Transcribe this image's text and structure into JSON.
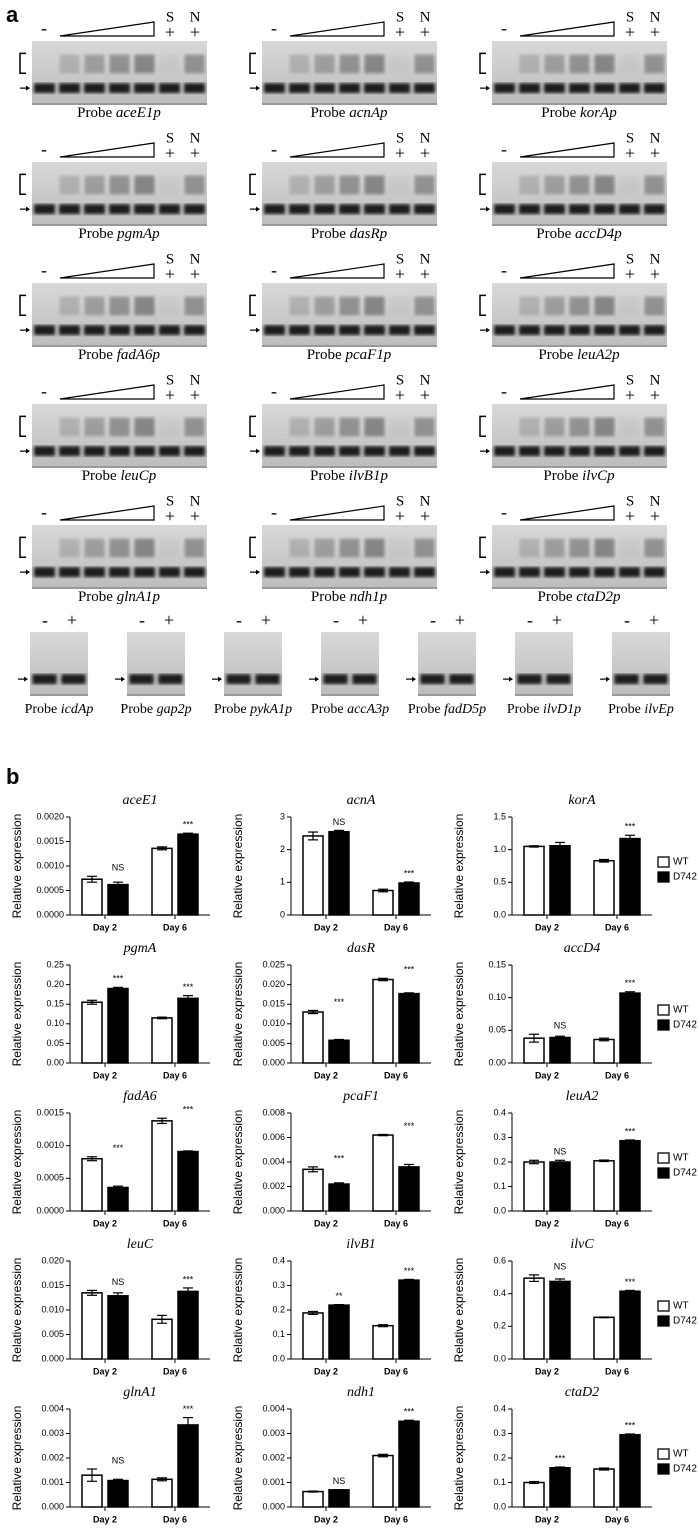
{
  "panel_a": {
    "label": "a",
    "minus": "-",
    "plus": "+",
    "specific": "S",
    "nonspecific": "N",
    "probe_word": "Probe",
    "titration_gels": [
      "aceE1p",
      "acnAp",
      "korAp",
      "pgmAp",
      "dasRp",
      "accD4p",
      "fadA6p",
      "pcaF1p",
      "leuA2p",
      "leuCp",
      "ilvB1p",
      "ilvCp",
      "glnA1p",
      "ndh1p",
      "ctaD2p"
    ],
    "control_gels": [
      "icdAp",
      "gap2p",
      "pykA1p",
      "accA3p",
      "fadD5p",
      "ilvD1p",
      "ilvEp"
    ]
  },
  "panel_b": {
    "label": "b"
  },
  "chart_data": [
    {
      "type": "bar",
      "title": "aceE1",
      "ylabel": "Relative expression",
      "categories": [
        "Day 2",
        "Day 6"
      ],
      "series": [
        {
          "name": "WT",
          "color": "#ffffff",
          "values": [
            0.00073,
            0.00136
          ],
          "errors": [
            6e-05,
            3e-05
          ]
        },
        {
          "name": "D742",
          "color": "#000000",
          "values": [
            0.00062,
            0.00165
          ],
          "errors": [
            5e-05,
            2e-05
          ]
        }
      ],
      "annotations": [
        "NS",
        "***"
      ],
      "ylim": [
        0,
        0.002
      ],
      "yticks": [
        {
          "value": 0,
          "label": "0.0000"
        },
        {
          "value": 0.0005,
          "label": "0.0005"
        },
        {
          "value": 0.001,
          "label": "0.0010"
        },
        {
          "value": 0.0015,
          "label": "0.0015"
        },
        {
          "value": 0.002,
          "label": "0.0020"
        }
      ],
      "legend": false
    },
    {
      "type": "bar",
      "title": "acnA",
      "ylabel": "Relative expression",
      "categories": [
        "Day 2",
        "Day 6"
      ],
      "series": [
        {
          "name": "WT",
          "color": "#ffffff",
          "values": [
            2.42,
            0.75
          ],
          "errors": [
            0.12,
            0.04
          ]
        },
        {
          "name": "D742",
          "color": "#000000",
          "values": [
            2.55,
            0.98
          ],
          "errors": [
            0.04,
            0.03
          ]
        }
      ],
      "annotations": [
        "NS",
        "***"
      ],
      "ylim": [
        0,
        3
      ],
      "yticks": [
        0,
        1,
        2,
        3
      ],
      "legend": false
    },
    {
      "type": "bar",
      "title": "korA",
      "ylabel": "Relative expression",
      "categories": [
        "Day 2",
        "Day 6"
      ],
      "series": [
        {
          "name": "WT",
          "color": "#ffffff",
          "values": [
            1.05,
            0.83
          ],
          "errors": [
            0.01,
            0.02
          ]
        },
        {
          "name": "D742",
          "color": "#000000",
          "values": [
            1.06,
            1.17
          ],
          "errors": [
            0.05,
            0.05
          ]
        }
      ],
      "annotations": [
        null,
        "***"
      ],
      "ylim": [
        0,
        1.5
      ],
      "yticks": [
        {
          "value": 0,
          "label": "0.0"
        },
        {
          "value": 0.5,
          "label": "0.5"
        },
        {
          "value": 1,
          "label": "1.0"
        },
        {
          "value": 1.5,
          "label": "1.5"
        }
      ],
      "legend": true
    },
    {
      "type": "bar",
      "title": "pgmA",
      "ylabel": "Relative expression",
      "categories": [
        "Day 2",
        "Day 6"
      ],
      "series": [
        {
          "name": "WT",
          "color": "#ffffff",
          "values": [
            0.155,
            0.115
          ],
          "errors": [
            0.005,
            0.002
          ]
        },
        {
          "name": "D742",
          "color": "#000000",
          "values": [
            0.19,
            0.165
          ],
          "errors": [
            0.003,
            0.007
          ]
        }
      ],
      "annotations": [
        "***",
        "***"
      ],
      "ylim": [
        0,
        0.25
      ],
      "yticks": [
        {
          "value": 0,
          "label": "0.00"
        },
        {
          "value": 0.05,
          "label": "0.05"
        },
        {
          "value": 0.1,
          "label": "0.10"
        },
        {
          "value": 0.15,
          "label": "0.15"
        },
        {
          "value": 0.2,
          "label": "0.20"
        },
        {
          "value": 0.25,
          "label": "0.25"
        }
      ],
      "legend": false
    },
    {
      "type": "bar",
      "title": "dasR",
      "ylabel": "Relative expression",
      "categories": [
        "Day 2",
        "Day 6"
      ],
      "series": [
        {
          "name": "WT",
          "color": "#ffffff",
          "values": [
            0.013,
            0.0213
          ],
          "errors": [
            0.0004,
            0.0003
          ]
        },
        {
          "name": "D742",
          "color": "#000000",
          "values": [
            0.0058,
            0.0177
          ],
          "errors": [
            0.0002,
            0.0002
          ]
        }
      ],
      "annotations": [
        "***",
        "***"
      ],
      "ylim": [
        0,
        0.025
      ],
      "yticks": [
        {
          "value": 0,
          "label": "0.000"
        },
        {
          "value": 0.005,
          "label": "0.005"
        },
        {
          "value": 0.01,
          "label": "0.010"
        },
        {
          "value": 0.015,
          "label": "0.015"
        },
        {
          "value": 0.02,
          "label": "0.020"
        },
        {
          "value": 0.025,
          "label": "0.025"
        }
      ],
      "legend": false
    },
    {
      "type": "bar",
      "title": "accD4",
      "ylabel": "Relative expression",
      "categories": [
        "Day 2",
        "Day 6"
      ],
      "series": [
        {
          "name": "WT",
          "color": "#ffffff",
          "values": [
            0.038,
            0.036
          ],
          "errors": [
            0.006,
            0.002
          ]
        },
        {
          "name": "D742",
          "color": "#000000",
          "values": [
            0.039,
            0.107
          ],
          "errors": [
            0.002,
            0.002
          ]
        }
      ],
      "annotations": [
        "NS",
        "***"
      ],
      "ylim": [
        0,
        0.15
      ],
      "yticks": [
        {
          "value": 0,
          "label": "0.00"
        },
        {
          "value": 0.05,
          "label": "0.05"
        },
        {
          "value": 0.1,
          "label": "0.10"
        },
        {
          "value": 0.15,
          "label": "0.15"
        }
      ],
      "legend": true
    },
    {
      "type": "bar",
      "title": "fadA6",
      "ylabel": "Relative expression",
      "categories": [
        "Day 2",
        "Day 6"
      ],
      "series": [
        {
          "name": "WT",
          "color": "#ffffff",
          "values": [
            0.0008,
            0.00138
          ],
          "errors": [
            3e-05,
            4e-05
          ]
        },
        {
          "name": "D742",
          "color": "#000000",
          "values": [
            0.00036,
            0.00091
          ],
          "errors": [
            2e-05,
            1e-05
          ]
        }
      ],
      "annotations": [
        "***",
        "***"
      ],
      "ylim": [
        0,
        0.0015
      ],
      "yticks": [
        {
          "value": 0,
          "label": "0.0000"
        },
        {
          "value": 0.0005,
          "label": "0.0005"
        },
        {
          "value": 0.001,
          "label": "0.0010"
        },
        {
          "value": 0.0015,
          "label": "0.0015"
        }
      ],
      "legend": false
    },
    {
      "type": "bar",
      "title": "pcaF1",
      "ylabel": "Relative expression",
      "categories": [
        "Day 2",
        "Day 6"
      ],
      "series": [
        {
          "name": "WT",
          "color": "#ffffff",
          "values": [
            0.0034,
            0.0062
          ],
          "errors": [
            0.0002,
            5e-05
          ]
        },
        {
          "name": "D742",
          "color": "#000000",
          "values": [
            0.0022,
            0.0036
          ],
          "errors": [
            0.0001,
            0.0002
          ]
        }
      ],
      "annotations": [
        "***",
        "***"
      ],
      "ylim": [
        0,
        0.008
      ],
      "yticks": [
        {
          "value": 0,
          "label": "0.000"
        },
        {
          "value": 0.002,
          "label": "0.002"
        },
        {
          "value": 0.004,
          "label": "0.004"
        },
        {
          "value": 0.006,
          "label": "0.006"
        },
        {
          "value": 0.008,
          "label": "0.008"
        }
      ],
      "legend": false
    },
    {
      "type": "bar",
      "title": "leuA2",
      "ylabel": "Relative expression",
      "categories": [
        "Day 2",
        "Day 6"
      ],
      "series": [
        {
          "name": "WT",
          "color": "#ffffff",
          "values": [
            0.2,
            0.205
          ],
          "errors": [
            0.007,
            0.003
          ]
        },
        {
          "name": "D742",
          "color": "#000000",
          "values": [
            0.2,
            0.287
          ],
          "errors": [
            0.007,
            0.003
          ]
        }
      ],
      "annotations": [
        "NS",
        "***"
      ],
      "ylim": [
        0,
        0.4
      ],
      "yticks": [
        {
          "value": 0,
          "label": "0.0"
        },
        0.1,
        0.2,
        0.3,
        0.4
      ],
      "legend": true
    },
    {
      "type": "bar",
      "title": "leuC",
      "ylabel": "Relative expression",
      "categories": [
        "Day 2",
        "Day 6"
      ],
      "series": [
        {
          "name": "WT",
          "color": "#ffffff",
          "values": [
            0.0135,
            0.0081
          ],
          "errors": [
            0.0005,
            0.0008
          ]
        },
        {
          "name": "D742",
          "color": "#000000",
          "values": [
            0.0129,
            0.0138
          ],
          "errors": [
            0.0006,
            0.0007
          ]
        }
      ],
      "annotations": [
        "NS",
        "***"
      ],
      "ylim": [
        0,
        0.02
      ],
      "yticks": [
        {
          "value": 0,
          "label": "0.000"
        },
        0.005,
        {
          "value": 0.01,
          "label": "0.010"
        },
        0.015,
        {
          "value": 0.02,
          "label": "0.020"
        }
      ],
      "legend": false
    },
    {
      "type": "bar",
      "title": "ilvB1",
      "ylabel": "Relative expression",
      "categories": [
        "Day 2",
        "Day 6"
      ],
      "series": [
        {
          "name": "WT",
          "color": "#ffffff",
          "values": [
            0.188,
            0.136
          ],
          "errors": [
            0.006,
            0.004
          ]
        },
        {
          "name": "D742",
          "color": "#000000",
          "values": [
            0.22,
            0.322
          ],
          "errors": [
            0.002,
            0.003
          ]
        }
      ],
      "annotations": [
        "**",
        "***"
      ],
      "ylim": [
        0,
        0.4
      ],
      "yticks": [
        {
          "value": 0,
          "label": "0.0"
        },
        0.1,
        0.2,
        0.3,
        0.4
      ],
      "legend": false
    },
    {
      "type": "bar",
      "title": "ilvC",
      "ylabel": "Relative expression",
      "categories": [
        "Day 2",
        "Day 6"
      ],
      "series": [
        {
          "name": "WT",
          "color": "#ffffff",
          "values": [
            0.495,
            0.255
          ],
          "errors": [
            0.02,
            0.002
          ]
        },
        {
          "name": "D742",
          "color": "#000000",
          "values": [
            0.475,
            0.415
          ],
          "errors": [
            0.015,
            0.005
          ]
        }
      ],
      "annotations": [
        "NS",
        "***"
      ],
      "ylim": [
        0,
        0.6
      ],
      "yticks": [
        {
          "value": 0,
          "label": "0.0"
        },
        0.2,
        0.4,
        0.6
      ],
      "legend": true
    },
    {
      "type": "bar",
      "title": "glnA1",
      "ylabel": "Relative expression",
      "categories": [
        "Day 2",
        "Day 6"
      ],
      "series": [
        {
          "name": "WT",
          "color": "#ffffff",
          "values": [
            0.0013,
            0.00113
          ],
          "errors": [
            0.00025,
            6e-05
          ]
        },
        {
          "name": "D742",
          "color": "#000000",
          "values": [
            0.00108,
            0.00335
          ],
          "errors": [
            5e-05,
            0.0003
          ]
        }
      ],
      "annotations": [
        "NS",
        "***"
      ],
      "ylim": [
        0,
        0.004
      ],
      "yticks": [
        {
          "value": 0,
          "label": "0.000"
        },
        0.001,
        0.002,
        0.003,
        0.004
      ],
      "legend": false
    },
    {
      "type": "bar",
      "title": "ndh1",
      "ylabel": "Relative expression",
      "categories": [
        "Day 2",
        "Day 6"
      ],
      "series": [
        {
          "name": "WT",
          "color": "#ffffff",
          "values": [
            0.00063,
            0.0021
          ],
          "errors": [
            2e-05,
            5e-05
          ]
        },
        {
          "name": "D742",
          "color": "#000000",
          "values": [
            0.0007,
            0.0035
          ],
          "errors": [
            1e-05,
            4e-05
          ]
        }
      ],
      "annotations": [
        "NS",
        "***"
      ],
      "ylim": [
        0,
        0.004
      ],
      "yticks": [
        {
          "value": 0,
          "label": "0.000"
        },
        0.001,
        0.002,
        0.003,
        0.004
      ],
      "legend": false
    },
    {
      "type": "bar",
      "title": "ctaD2",
      "ylabel": "Relative expression",
      "categories": [
        "Day 2",
        "Day 6"
      ],
      "series": [
        {
          "name": "WT",
          "color": "#ffffff",
          "values": [
            0.1,
            0.155
          ],
          "errors": [
            0.004,
            0.004
          ]
        },
        {
          "name": "D742",
          "color": "#000000",
          "values": [
            0.16,
            0.295
          ],
          "errors": [
            0.003,
            0.003
          ]
        }
      ],
      "annotations": [
        "***",
        "***"
      ],
      "ylim": [
        0,
        0.4
      ],
      "yticks": [
        {
          "value": 0,
          "label": "0.0"
        },
        0.1,
        0.2,
        0.3,
        0.4
      ],
      "legend": true
    }
  ]
}
